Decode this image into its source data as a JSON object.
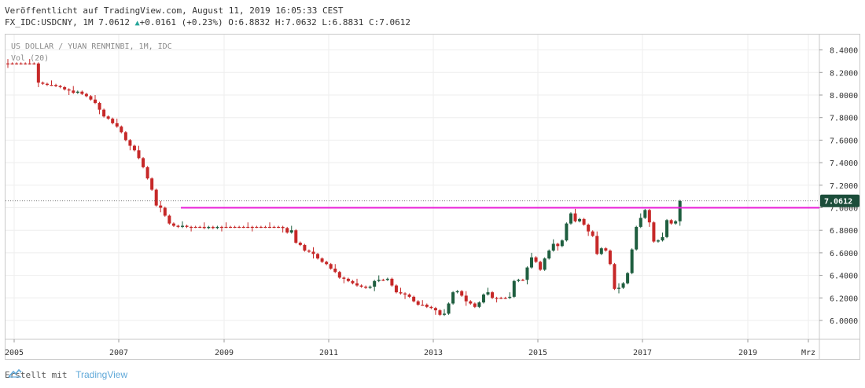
{
  "header": {
    "published": "Veröffentlicht auf TradingView.com, August 11, 2019 16:05:33 CEST",
    "symbol": "FX_IDC:USDCNY, 1M",
    "last": "7.0612",
    "up_icon": "triangle-up-icon",
    "change": "+0.0161 (+0.23%)",
    "ohlc": "O:6.8832 H:7.0632 L:6.8831 C:7.0612"
  },
  "chart_data": {
    "type": "candlestick",
    "title": "US DOLLAR / YUAN RENMINBI, 1M, IDC",
    "indicator": "Vol (20)",
    "ylim": [
      5.8,
      8.5
    ],
    "y_ticks": [
      "8.4000",
      "8.2000",
      "8.0000",
      "7.8000",
      "7.6000",
      "7.4000",
      "7.2000",
      "7.0000",
      "6.8000",
      "6.6000",
      "6.4000",
      "6.2000",
      "6.0000"
    ],
    "x_ticks": [
      "2005",
      "2007",
      "2009",
      "2011",
      "2013",
      "2015",
      "2017",
      "2019",
      "Mrz"
    ],
    "last_price_label": "7.0612",
    "horizontal_line": {
      "value": 7.0,
      "color": "#e91fd8"
    },
    "up_color": "#1e5e3f",
    "down_color": "#c62828",
    "series_open_close": [
      [
        8.28,
        8.28
      ],
      [
        8.28,
        8.28
      ],
      [
        8.28,
        8.28
      ],
      [
        8.28,
        8.28
      ],
      [
        8.28,
        8.28
      ],
      [
        8.28,
        8.28
      ],
      [
        8.28,
        8.28
      ],
      [
        8.28,
        8.11
      ],
      [
        8.11,
        8.1
      ],
      [
        8.1,
        8.09
      ],
      [
        8.09,
        8.09
      ],
      [
        8.09,
        8.08
      ],
      [
        8.08,
        8.07
      ],
      [
        8.07,
        8.05
      ],
      [
        8.05,
        8.04
      ],
      [
        8.04,
        8.02
      ],
      [
        8.02,
        8.03
      ],
      [
        8.03,
        8.01
      ],
      [
        8.01,
        7.99
      ],
      [
        7.99,
        7.96
      ],
      [
        7.96,
        7.93
      ],
      [
        7.93,
        7.87
      ],
      [
        7.87,
        7.81
      ],
      [
        7.81,
        7.79
      ],
      [
        7.79,
        7.75
      ],
      [
        7.75,
        7.72
      ],
      [
        7.72,
        7.67
      ],
      [
        7.67,
        7.6
      ],
      [
        7.6,
        7.55
      ],
      [
        7.55,
        7.51
      ],
      [
        7.51,
        7.44
      ],
      [
        7.44,
        7.36
      ],
      [
        7.36,
        7.26
      ],
      [
        7.26,
        7.16
      ],
      [
        7.16,
        7.02
      ],
      [
        7.02,
        7.0
      ],
      [
        7.0,
        6.93
      ],
      [
        6.93,
        6.86
      ],
      [
        6.86,
        6.84
      ],
      [
        6.84,
        6.83
      ],
      [
        6.83,
        6.84
      ],
      [
        6.84,
        6.83
      ],
      [
        6.83,
        6.83
      ],
      [
        6.83,
        6.83
      ],
      [
        6.83,
        6.83
      ],
      [
        6.83,
        6.82
      ],
      [
        6.82,
        6.83
      ],
      [
        6.83,
        6.82
      ],
      [
        6.82,
        6.83
      ],
      [
        6.83,
        6.83
      ],
      [
        6.83,
        6.83
      ],
      [
        6.83,
        6.83
      ],
      [
        6.83,
        6.83
      ],
      [
        6.83,
        6.83
      ],
      [
        6.83,
        6.83
      ],
      [
        6.83,
        6.83
      ],
      [
        6.83,
        6.83
      ],
      [
        6.83,
        6.83
      ],
      [
        6.83,
        6.83
      ],
      [
        6.83,
        6.83
      ],
      [
        6.83,
        6.83
      ],
      [
        6.83,
        6.83
      ],
      [
        6.83,
        6.83
      ],
      [
        6.83,
        6.82
      ],
      [
        6.82,
        6.78
      ],
      [
        6.78,
        6.8
      ],
      [
        6.8,
        6.69
      ],
      [
        6.69,
        6.67
      ],
      [
        6.67,
        6.62
      ],
      [
        6.62,
        6.61
      ],
      [
        6.61,
        6.59
      ],
      [
        6.59,
        6.55
      ],
      [
        6.55,
        6.52
      ],
      [
        6.52,
        6.5
      ],
      [
        6.5,
        6.46
      ],
      [
        6.46,
        6.43
      ],
      [
        6.43,
        6.38
      ],
      [
        6.38,
        6.37
      ],
      [
        6.37,
        6.35
      ],
      [
        6.35,
        6.33
      ],
      [
        6.33,
        6.31
      ],
      [
        6.31,
        6.3
      ],
      [
        6.3,
        6.29
      ],
      [
        6.29,
        6.3
      ],
      [
        6.3,
        6.35
      ],
      [
        6.35,
        6.36
      ],
      [
        6.36,
        6.36
      ],
      [
        6.36,
        6.37
      ],
      [
        6.37,
        6.31
      ],
      [
        6.31,
        6.25
      ],
      [
        6.25,
        6.24
      ],
      [
        6.24,
        6.23
      ],
      [
        6.23,
        6.21
      ],
      [
        6.21,
        6.17
      ],
      [
        6.17,
        6.14
      ],
      [
        6.14,
        6.14
      ],
      [
        6.14,
        6.12
      ],
      [
        6.12,
        6.11
      ],
      [
        6.11,
        6.09
      ],
      [
        6.09,
        6.05
      ],
      [
        6.05,
        6.06
      ],
      [
        6.06,
        6.15
      ],
      [
        6.15,
        6.25
      ],
      [
        6.25,
        6.26
      ],
      [
        6.26,
        6.22
      ],
      [
        6.22,
        6.17
      ],
      [
        6.17,
        6.15
      ],
      [
        6.15,
        6.12
      ],
      [
        6.12,
        6.16
      ],
      [
        6.16,
        6.23
      ],
      [
        6.23,
        6.25
      ],
      [
        6.25,
        6.2
      ],
      [
        6.2,
        6.2
      ],
      [
        6.2,
        6.2
      ],
      [
        6.2,
        6.2
      ],
      [
        6.2,
        6.21
      ],
      [
        6.21,
        6.35
      ],
      [
        6.35,
        6.36
      ],
      [
        6.36,
        6.36
      ],
      [
        6.36,
        6.47
      ],
      [
        6.47,
        6.56
      ],
      [
        6.56,
        6.52
      ],
      [
        6.52,
        6.45
      ],
      [
        6.45,
        6.55
      ],
      [
        6.55,
        6.62
      ],
      [
        6.62,
        6.68
      ],
      [
        6.68,
        6.66
      ],
      [
        6.66,
        6.71
      ],
      [
        6.71,
        6.86
      ],
      [
        6.86,
        6.95
      ],
      [
        6.95,
        6.88
      ],
      [
        6.88,
        6.9
      ],
      [
        6.9,
        6.85
      ],
      [
        6.85,
        6.79
      ],
      [
        6.79,
        6.75
      ],
      [
        6.75,
        6.59
      ],
      [
        6.59,
        6.64
      ],
      [
        6.64,
        6.62
      ],
      [
        6.62,
        6.5
      ],
      [
        6.5,
        6.28
      ],
      [
        6.28,
        6.29
      ],
      [
        6.29,
        6.33
      ],
      [
        6.33,
        6.42
      ],
      [
        6.42,
        6.63
      ],
      [
        6.63,
        6.83
      ],
      [
        6.83,
        6.91
      ],
      [
        6.91,
        6.98
      ],
      [
        6.98,
        6.87
      ],
      [
        6.87,
        6.7
      ],
      [
        6.7,
        6.71
      ],
      [
        6.71,
        6.74
      ],
      [
        6.74,
        6.89
      ],
      [
        6.89,
        6.86
      ],
      [
        6.86,
        6.88
      ],
      [
        6.88,
        7.06
      ]
    ]
  },
  "footer": {
    "made_with": "Erstellt mit",
    "brand": "TradingView",
    "logo_icon": "tradingview-logo-icon"
  }
}
